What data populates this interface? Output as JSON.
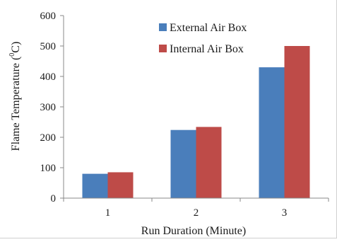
{
  "chart_data": {
    "type": "bar",
    "title": "",
    "xlabel": "Run Duration  (Minute)",
    "ylabel": "Flame Temperature  (°C)",
    "ylabel_parts": {
      "prefix": "Flame Temperature  (",
      "sup": "0",
      "suffix": "C)"
    },
    "categories": [
      "1",
      "2",
      "3"
    ],
    "ylim": [
      0,
      600
    ],
    "yticks": [
      0,
      100,
      200,
      300,
      400,
      500,
      600
    ],
    "grid": false,
    "legend_position": "top-center",
    "series": [
      {
        "name": "External Air Box",
        "color": "#4a7ebb",
        "values": [
          80,
          224,
          430
        ]
      },
      {
        "name": "Internal Air Box",
        "color": "#be4b48",
        "values": [
          85,
          234,
          500
        ]
      }
    ]
  }
}
